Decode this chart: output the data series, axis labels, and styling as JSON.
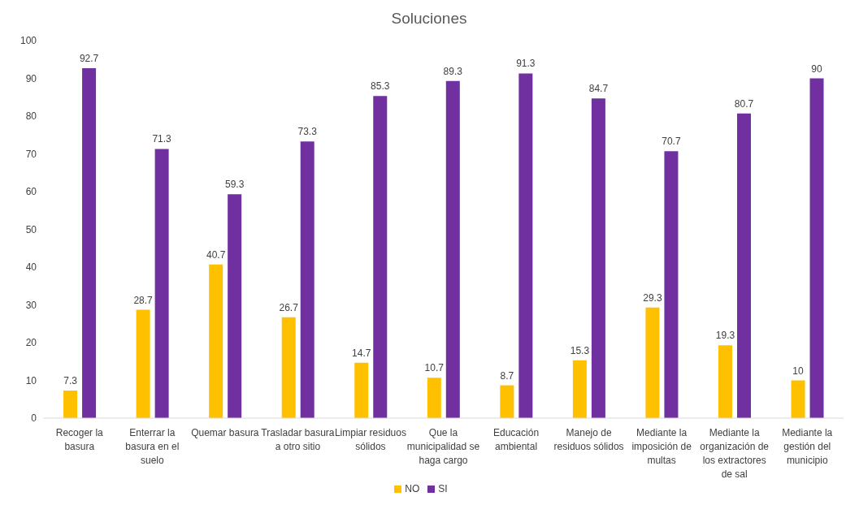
{
  "chart_data": {
    "type": "bar",
    "title": "Soluciones",
    "categories": [
      "Recoger la basura",
      "Enterrar la basura en el suelo",
      "Quemar basura",
      "Trasladar basura a otro sitio",
      "Limpiar residuos sólidos",
      "Que la municipalidad se haga cargo",
      "Educación ambiental",
      "Manejo de residuos sólidos",
      "Mediante la imposición de multas",
      "Mediante la organización de los extractores de sal",
      "Mediante la gestión del municipio"
    ],
    "series": [
      {
        "name": "NO",
        "color": "#ffc000",
        "values": [
          7.3,
          28.7,
          40.7,
          26.7,
          14.7,
          10.7,
          8.7,
          15.3,
          29.3,
          19.3,
          10
        ]
      },
      {
        "name": "SI",
        "color": "#7030a0",
        "values": [
          92.7,
          71.3,
          59.3,
          73.3,
          85.3,
          89.3,
          91.3,
          84.7,
          70.7,
          80.7,
          90
        ]
      }
    ],
    "ylim": [
      0,
      100
    ],
    "yticks": [
      0,
      10,
      20,
      30,
      40,
      50,
      60,
      70,
      80,
      90,
      100
    ],
    "data_labels": true,
    "legend": "bottom"
  }
}
